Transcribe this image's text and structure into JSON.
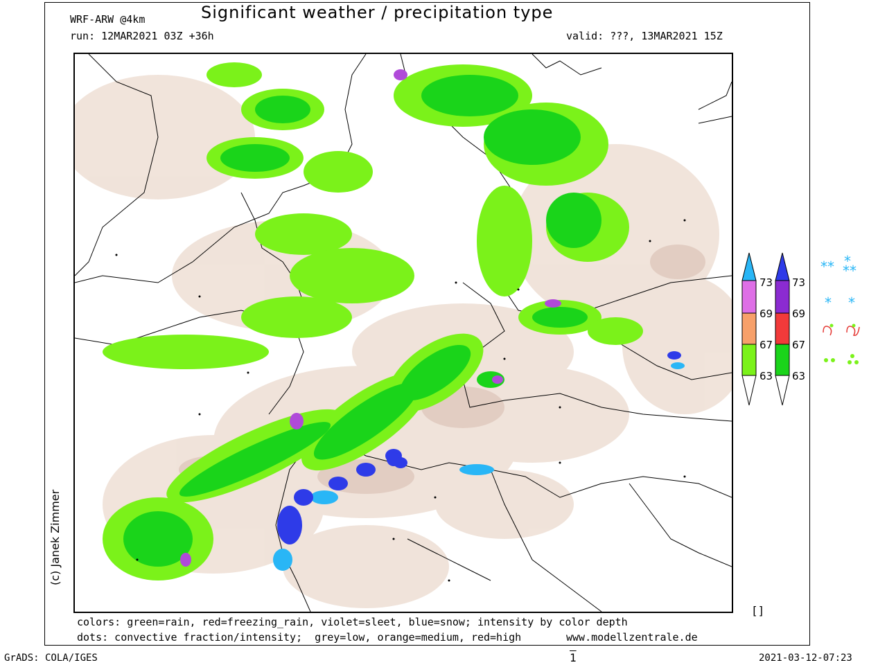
{
  "header": {
    "model": "WRF-ARW @4km",
    "title": "Significant weather / precipitation type",
    "run": "run: 12MAR2021 03Z +36h",
    "valid": "valid: ???, 13MAR2021 15Z"
  },
  "credit": "(c) Janek Zimmer",
  "footer": {
    "line1": "colors: green=rain, red=freezing_rain, violet=sleet, blue=snow; intensity by color depth",
    "line2": "dots: convective fraction/intensity;  grey=low, orange=medium, red=high",
    "website": "www.modellzentrale.de",
    "box_mark": "[]",
    "grads": "GrADS: COLA/IGES",
    "page": "1",
    "timestamp": "2021-03-12-07:23"
  },
  "legend_bar_1": {
    "labels": [
      "73",
      "69",
      "67",
      "63"
    ],
    "colors": {
      "top": "#29b6f6",
      "s1": "#de6fe6",
      "s2": "#f7a06a",
      "s3": "#7bf21a"
    }
  },
  "legend_bar_2": {
    "labels": [
      "73",
      "69",
      "67",
      "63"
    ],
    "colors": {
      "top": "#2e3be8",
      "s1": "#8b2bd1",
      "s2": "#f23a3a",
      "s3": "#1ad41a"
    }
  },
  "symbols": [
    {
      "name": "heavy-snow-icon",
      "glyph": "** ⁂"
    },
    {
      "name": "snow-icon",
      "glyph": "*   *"
    },
    {
      "name": "freezing-rain-icon",
      "glyph": "ᔑ ᔑ"
    },
    {
      "name": "rain-icon",
      "glyph": "•• ⁘"
    }
  ],
  "colors": {
    "rain_light": "#7bf21a",
    "rain_heavy": "#1ad41a",
    "snow": "#2e3be8",
    "snow_light": "#29b6f6",
    "sleet": "#b04ad9",
    "cloud": "#efe1d7",
    "terrain": "#dfc7bb"
  }
}
